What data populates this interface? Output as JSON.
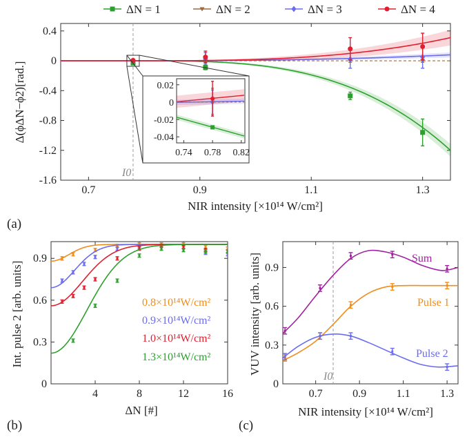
{
  "colors": {
    "dn1": "#2ca02c",
    "dn2": "#9c6a3e",
    "dn3": "#6b6bf0",
    "dn4": "#e01e2e",
    "orange": "#f08c1a",
    "purple": "#a020a0",
    "grid_dash": "#9a9a9a"
  },
  "panel_labels": {
    "a": "(a)",
    "b": "(b)",
    "c": "(c)"
  },
  "chart_data": [
    {
      "id": "a",
      "type": "line",
      "xlabel": "NIR intensity [×10¹⁴ W/cm²]",
      "ylabel": "Δ(ϕΔN−ϕ2)[rad.]",
      "xlim": [
        0.65,
        1.35
      ],
      "ylim": [
        -1.6,
        0.5
      ],
      "xticks": [
        "0.7",
        "0.9",
        "1.1",
        "1.3"
      ],
      "xtick_values": [
        0.7,
        0.9,
        1.1,
        1.3
      ],
      "yticks": [
        "-1.6",
        "-1.2",
        "-0.8",
        "-0.4",
        "0",
        "0.4"
      ],
      "ytick_values": [
        -1.6,
        -1.2,
        -0.8,
        -0.4,
        0,
        0.4
      ],
      "ref_line": {
        "x": 0.78,
        "label": "I0"
      },
      "legend": {
        "position": "top",
        "entries": [
          "ΔN = 1",
          "ΔN = 2",
          "ΔN = 3",
          "ΔN = 4"
        ]
      },
      "series": [
        {
          "name": "ΔN = 1",
          "color_key": "dn1",
          "marker": "square",
          "points": [
            [
              0.78,
              -0.03,
              0.01
            ],
            [
              0.91,
              -0.09,
              0.03
            ],
            [
              1.17,
              -0.47,
              0.05
            ],
            [
              1.3,
              -0.96,
              0.18
            ]
          ],
          "curve": {
            "a": -1.2,
            "power": 3.2,
            "band": 0.08
          }
        },
        {
          "name": "ΔN = 2",
          "color_key": "dn2",
          "marker": "triangle",
          "points": [
            [
              0.78,
              0.0,
              0.01
            ],
            [
              0.91,
              0.0,
              0.02
            ],
            [
              1.17,
              0.0,
              0.02
            ],
            [
              1.3,
              0.0,
              0.02
            ]
          ],
          "curve": {
            "a": 0,
            "power": 1,
            "band": 0.005
          }
        },
        {
          "name": "ΔN = 3",
          "color_key": "dn3",
          "marker": "diamond",
          "points": [
            [
              0.78,
              0.0,
              0.02
            ],
            [
              0.91,
              0.03,
              0.08
            ],
            [
              1.17,
              0.02,
              0.12
            ],
            [
              1.3,
              0.05,
              0.15
            ]
          ],
          "curve": {
            "a": 0.08,
            "power": 2.5,
            "band": 0.03
          }
        },
        {
          "name": "ΔN = 4",
          "color_key": "dn4",
          "marker": "circle",
          "points": [
            [
              0.78,
              0.005,
              0.02
            ],
            [
              0.91,
              0.05,
              0.08
            ],
            [
              1.17,
              0.16,
              0.15
            ],
            [
              1.3,
              0.19,
              0.18
            ]
          ],
          "curve": {
            "a": 0.31,
            "power": 3,
            "band": 0.1
          }
        }
      ],
      "inset": {
        "xlim": [
          0.73,
          0.825
        ],
        "ylim": [
          -0.047,
          0.027
        ],
        "xticks": [
          "0.74",
          "0.78",
          "0.82"
        ],
        "xtick_values": [
          0.74,
          0.78,
          0.82
        ],
        "yticks": [
          "0.02",
          "0",
          "-0.02",
          "-0.04"
        ],
        "ytick_values": [
          0.02,
          0,
          -0.02,
          -0.04
        ],
        "points": [
          {
            "color_key": "dn1",
            "marker": "square",
            "x": 0.78,
            "y": -0.029,
            "err": 0.001
          },
          {
            "color_key": "dn2",
            "marker": "triangle",
            "x": 0.78,
            "y": 0.0,
            "err": 0.016
          },
          {
            "color_key": "dn3",
            "marker": "diamond",
            "x": 0.78,
            "y": 0.0,
            "err": 0.014
          },
          {
            "color_key": "dn4",
            "marker": "circle",
            "x": 0.78,
            "y": 0.004,
            "err": 0.02
          }
        ]
      }
    },
    {
      "id": "b",
      "type": "line",
      "xlabel": "ΔN [#]",
      "ylabel": "Int. pulse 2 [arb. units]",
      "xlim": [
        0,
        16
      ],
      "ylim": [
        0,
        1.02
      ],
      "xticks": [
        "4",
        "8",
        "12",
        "16"
      ],
      "xtick_values": [
        4,
        8,
        12,
        16
      ],
      "yticks": [
        "0",
        "0.3",
        "0.6",
        "0.9"
      ],
      "ytick_values": [
        0,
        0.3,
        0.6,
        0.9
      ],
      "series": [
        {
          "name": "0.8×10¹⁴W/cm²",
          "color_key": "orange",
          "curve": {
            "y0": 0.88,
            "x0": 2,
            "w": 1.8
          },
          "points": [
            [
              1,
              0.9
            ],
            [
              2,
              0.93
            ],
            [
              4,
              0.96
            ],
            [
              6,
              0.99
            ],
            [
              8,
              1.0
            ],
            [
              10,
              1.0
            ],
            [
              12,
              1.0
            ],
            [
              14,
              0.98
            ],
            [
              16,
              0.97
            ]
          ]
        },
        {
          "name": "0.9×10¹⁴W/cm²",
          "color_key": "dn3",
          "curve": {
            "y0": 0.69,
            "x0": 2.6,
            "w": 1.6
          },
          "points": [
            [
              1,
              0.74
            ],
            [
              2,
              0.8
            ],
            [
              3,
              0.86
            ],
            [
              4,
              0.91
            ],
            [
              6,
              0.97
            ],
            [
              8,
              0.98
            ],
            [
              10,
              0.97
            ],
            [
              12,
              0.96
            ],
            [
              14,
              0.94
            ],
            [
              16,
              0.93
            ]
          ]
        },
        {
          "name": "1.0×10¹⁴W/cm²",
          "color_key": "dn4",
          "curve": {
            "y0": 0.56,
            "x0": 3.5,
            "w": 1.5
          },
          "points": [
            [
              1,
              0.59
            ],
            [
              2,
              0.63
            ],
            [
              3,
              0.69
            ],
            [
              4,
              0.75
            ],
            [
              6,
              0.9
            ],
            [
              8,
              0.97
            ],
            [
              10,
              0.99
            ],
            [
              12,
              0.98
            ],
            [
              14,
              0.96
            ],
            [
              16,
              0.95
            ]
          ]
        },
        {
          "name": "1.3×10¹⁴W/cm²",
          "color_key": "dn1",
          "curve": {
            "y0": 0.22,
            "x0": 4.0,
            "w": 1.5
          },
          "points": [
            [
              2,
              0.31
            ],
            [
              4,
              0.56
            ],
            [
              6,
              0.74
            ],
            [
              8,
              0.92
            ],
            [
              10,
              0.97
            ],
            [
              12,
              0.96
            ],
            [
              14,
              0.95
            ],
            [
              16,
              0.95
            ]
          ]
        }
      ]
    },
    {
      "id": "c",
      "type": "line",
      "xlabel": "NIR intensity [×10¹⁴ W/cm²]",
      "ylabel": "VUV intensity [arb. units]",
      "xlim": [
        0.55,
        1.35
      ],
      "ylim": [
        0,
        1.1
      ],
      "xticks": [
        "0.7",
        "0.9",
        "1.1",
        "1.3"
      ],
      "xtick_values": [
        0.7,
        0.9,
        1.1,
        1.3
      ],
      "yticks": [
        "0",
        "0.3",
        "0.6",
        "0.9"
      ],
      "ytick_values": [
        0,
        0.3,
        0.6,
        0.9
      ],
      "ref_line": {
        "x": 0.78,
        "label": "I0"
      },
      "series": [
        {
          "name": "Sum",
          "color_key": "purple",
          "points": [
            [
              0.56,
              0.41
            ],
            [
              0.72,
              0.74
            ],
            [
              0.86,
              0.99
            ],
            [
              1.05,
              1.0
            ],
            [
              1.3,
              0.89
            ]
          ],
          "curve": [
            [
              0.55,
              0.39
            ],
            [
              0.62,
              0.51
            ],
            [
              0.7,
              0.68
            ],
            [
              0.78,
              0.84
            ],
            [
              0.86,
              0.97
            ],
            [
              0.94,
              1.03
            ],
            [
              1.02,
              1.02
            ],
            [
              1.1,
              0.98
            ],
            [
              1.18,
              0.92
            ],
            [
              1.26,
              0.88
            ],
            [
              1.3,
              0.88
            ],
            [
              1.35,
              0.9
            ]
          ]
        },
        {
          "name": "Pulse 1",
          "color_key": "orange",
          "points": [
            [
              0.56,
              0.2
            ],
            [
              0.72,
              0.37
            ],
            [
              0.86,
              0.61
            ],
            [
              1.05,
              0.75
            ],
            [
              1.3,
              0.76
            ]
          ],
          "curve": [
            [
              0.55,
              0.18
            ],
            [
              0.62,
              0.24
            ],
            [
              0.7,
              0.33
            ],
            [
              0.78,
              0.46
            ],
            [
              0.86,
              0.6
            ],
            [
              0.94,
              0.7
            ],
            [
              1.02,
              0.75
            ],
            [
              1.1,
              0.76
            ],
            [
              1.2,
              0.76
            ],
            [
              1.35,
              0.76
            ]
          ]
        },
        {
          "name": "Pulse 2",
          "color_key": "dn3",
          "points": [
            [
              0.56,
              0.21
            ],
            [
              0.72,
              0.37
            ],
            [
              0.86,
              0.37
            ],
            [
              1.05,
              0.25
            ],
            [
              1.3,
              0.13
            ]
          ],
          "curve": [
            [
              0.55,
              0.2
            ],
            [
              0.62,
              0.29
            ],
            [
              0.7,
              0.36
            ],
            [
              0.78,
              0.385
            ],
            [
              0.86,
              0.37
            ],
            [
              0.94,
              0.32
            ],
            [
              1.02,
              0.26
            ],
            [
              1.1,
              0.2
            ],
            [
              1.18,
              0.15
            ],
            [
              1.26,
              0.13
            ],
            [
              1.35,
              0.14
            ]
          ]
        }
      ]
    }
  ]
}
